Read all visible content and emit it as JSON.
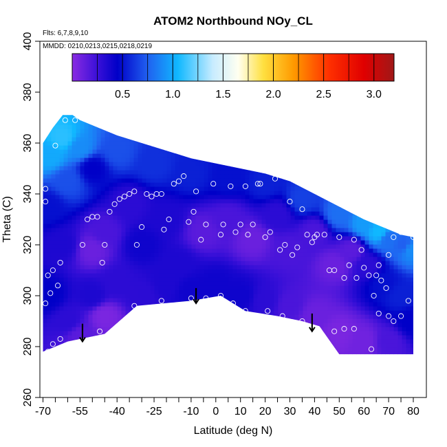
{
  "chart_data": {
    "type": "heatmap",
    "title": "ATOM2 Northbound NOy_CL",
    "subtitle": "Flts: 6,7,8,9,10",
    "annotation": "MMDD: 0210,0213,0215,0218,0219",
    "xlabel": "Latitude (deg N)",
    "ylabel": "Theta (C)",
    "xlim": [
      -70,
      80
    ],
    "ylim": [
      260,
      400
    ],
    "x_ticks": [
      -70,
      -55,
      -40,
      -25,
      -10,
      0,
      10,
      20,
      30,
      40,
      50,
      60,
      70,
      80
    ],
    "x_minor_ticks": [
      -65,
      -60,
      -50,
      -45,
      -35,
      -30,
      -20,
      -15,
      -5,
      5,
      15,
      25,
      35,
      45,
      55,
      65,
      75
    ],
    "y_ticks": [
      260,
      280,
      300,
      320,
      340,
      360,
      380,
      400
    ],
    "grid": false,
    "colorbar": {
      "range": [
        0,
        3.2
      ],
      "ticks": [
        0.5,
        1.0,
        1.5,
        2.0,
        2.5,
        3.0
      ],
      "tick_labels": [
        "0.5",
        "1.0",
        "1.5",
        "2.0",
        "2.5",
        "3.0"
      ],
      "stops": [
        {
          "v": 0.0,
          "c": "#8a2be2"
        },
        {
          "v": 0.25,
          "c": "#3a10d8"
        },
        {
          "v": 0.45,
          "c": "#0000c8"
        },
        {
          "v": 0.75,
          "c": "#2060f0"
        },
        {
          "v": 1.05,
          "c": "#10b8ff"
        },
        {
          "v": 1.4,
          "c": "#c8ecff"
        },
        {
          "v": 1.65,
          "c": "#fffff0"
        },
        {
          "v": 1.9,
          "c": "#ffe040"
        },
        {
          "v": 2.2,
          "c": "#ff9a00"
        },
        {
          "v": 2.55,
          "c": "#ff3000"
        },
        {
          "v": 2.9,
          "c": "#e00000"
        },
        {
          "v": 3.2,
          "c": "#a01818"
        }
      ]
    },
    "field_top": [
      [
        -70,
        360
      ],
      [
        -66,
        366
      ],
      [
        -62,
        371
      ],
      [
        -58,
        371
      ],
      [
        -55,
        369
      ],
      [
        -50,
        367
      ],
      [
        -40,
        363
      ],
      [
        -30,
        360
      ],
      [
        -20,
        357
      ],
      [
        -10,
        354
      ],
      [
        0,
        352
      ],
      [
        10,
        350
      ],
      [
        20,
        348
      ],
      [
        30,
        345
      ],
      [
        40,
        340
      ],
      [
        50,
        335
      ],
      [
        60,
        330
      ],
      [
        70,
        326
      ],
      [
        75,
        324
      ],
      [
        80,
        323
      ]
    ],
    "field_bottom": [
      [
        -70,
        278
      ],
      [
        -65,
        280
      ],
      [
        -60,
        282
      ],
      [
        -45,
        285
      ],
      [
        -32,
        296
      ],
      [
        -10,
        298
      ],
      [
        2,
        300
      ],
      [
        12,
        294
      ],
      [
        25,
        292
      ],
      [
        35,
        290
      ],
      [
        42,
        288
      ],
      [
        50,
        277
      ],
      [
        80,
        277
      ]
    ],
    "field_samples": [
      {
        "x": -67,
        "y": 355,
        "v": 1.0
      },
      {
        "x": -62,
        "y": 362,
        "v": 1.1
      },
      {
        "x": -60,
        "y": 345,
        "v": 0.7
      },
      {
        "x": -55,
        "y": 358,
        "v": 0.9
      },
      {
        "x": -50,
        "y": 350,
        "v": 0.45
      },
      {
        "x": -40,
        "y": 357,
        "v": 0.7
      },
      {
        "x": -25,
        "y": 352,
        "v": 0.6
      },
      {
        "x": -10,
        "y": 348,
        "v": 0.55
      },
      {
        "x": 5,
        "y": 346,
        "v": 0.5
      },
      {
        "x": 20,
        "y": 344,
        "v": 0.55
      },
      {
        "x": 35,
        "y": 338,
        "v": 0.65
      },
      {
        "x": 50,
        "y": 332,
        "v": 0.8
      },
      {
        "x": 60,
        "y": 328,
        "v": 0.95
      },
      {
        "x": 66,
        "y": 325,
        "v": 1.05
      },
      {
        "x": 70,
        "y": 322,
        "v": 0.8
      },
      {
        "x": 76,
        "y": 320,
        "v": 0.75
      },
      {
        "x": 79,
        "y": 318,
        "v": 0.9
      },
      {
        "x": -68,
        "y": 335,
        "v": 0.5
      },
      {
        "x": -62,
        "y": 320,
        "v": 0.35
      },
      {
        "x": -50,
        "y": 318,
        "v": 0.1
      },
      {
        "x": -45,
        "y": 325,
        "v": 0.2
      },
      {
        "x": -35,
        "y": 336,
        "v": 0.3
      },
      {
        "x": -30,
        "y": 320,
        "v": 0.4
      },
      {
        "x": -20,
        "y": 330,
        "v": 0.35
      },
      {
        "x": -15,
        "y": 312,
        "v": 0.35
      },
      {
        "x": -5,
        "y": 325,
        "v": 0.15
      },
      {
        "x": 5,
        "y": 330,
        "v": 0.2
      },
      {
        "x": 15,
        "y": 322,
        "v": 0.1
      },
      {
        "x": 25,
        "y": 332,
        "v": 0.3
      },
      {
        "x": 30,
        "y": 318,
        "v": 0.2
      },
      {
        "x": 40,
        "y": 325,
        "v": 0.2
      },
      {
        "x": 48,
        "y": 312,
        "v": 0.1
      },
      {
        "x": 55,
        "y": 318,
        "v": 0.15
      },
      {
        "x": 62,
        "y": 312,
        "v": 0.3
      },
      {
        "x": 68,
        "y": 305,
        "v": 0.5
      },
      {
        "x": 75,
        "y": 300,
        "v": 0.55
      },
      {
        "x": 79,
        "y": 290,
        "v": 0.45
      },
      {
        "x": -68,
        "y": 300,
        "v": 0.45
      },
      {
        "x": -60,
        "y": 290,
        "v": 0.3
      },
      {
        "x": -50,
        "y": 300,
        "v": 0.35
      },
      {
        "x": -40,
        "y": 305,
        "v": 0.3
      },
      {
        "x": -30,
        "y": 300,
        "v": 0.3
      },
      {
        "x": -20,
        "y": 305,
        "v": 0.35
      },
      {
        "x": -10,
        "y": 302,
        "v": 0.4
      },
      {
        "x": 0,
        "y": 304,
        "v": 0.4
      },
      {
        "x": 10,
        "y": 300,
        "v": 0.4
      },
      {
        "x": 20,
        "y": 298,
        "v": 0.3
      },
      {
        "x": 30,
        "y": 296,
        "v": 0.2
      },
      {
        "x": 40,
        "y": 292,
        "v": 0.1
      },
      {
        "x": 50,
        "y": 285,
        "v": 0.05
      },
      {
        "x": 60,
        "y": 282,
        "v": 0.08
      },
      {
        "x": 70,
        "y": 282,
        "v": 0.2
      },
      {
        "x": -55,
        "y": 284,
        "v": 0.15
      },
      {
        "x": -45,
        "y": 292,
        "v": 0.05
      }
    ],
    "observation_points": [
      [
        -69,
        342
      ],
      [
        -69,
        337
      ],
      [
        -68,
        308
      ],
      [
        -69,
        297
      ],
      [
        -67,
        301
      ],
      [
        -66,
        310
      ],
      [
        -64,
        304
      ],
      [
        -63,
        313
      ],
      [
        -66,
        281
      ],
      [
        -63,
        283
      ],
      [
        -68,
        278
      ],
      [
        -65,
        359
      ],
      [
        -61,
        369
      ],
      [
        -57,
        369
      ],
      [
        -54,
        320
      ],
      [
        -52,
        330
      ],
      [
        -50,
        331
      ],
      [
        -48,
        331
      ],
      [
        -46,
        313
      ],
      [
        -45,
        320
      ],
      [
        -43,
        333
      ],
      [
        -41,
        336
      ],
      [
        -39,
        338
      ],
      [
        -37,
        339
      ],
      [
        -35,
        340
      ],
      [
        -33,
        341
      ],
      [
        -32,
        320
      ],
      [
        -30,
        327
      ],
      [
        -28,
        340
      ],
      [
        -26,
        339
      ],
      [
        -24,
        340
      ],
      [
        -22,
        340
      ],
      [
        -21,
        326
      ],
      [
        -19,
        330
      ],
      [
        -17,
        344
      ],
      [
        -15,
        345
      ],
      [
        -13,
        347
      ],
      [
        -11,
        329
      ],
      [
        -9,
        333
      ],
      [
        -8,
        341
      ],
      [
        -6,
        322
      ],
      [
        -4,
        328
      ],
      [
        -1,
        344
      ],
      [
        2,
        324
      ],
      [
        3,
        328
      ],
      [
        6,
        343
      ],
      [
        8,
        325
      ],
      [
        10,
        328
      ],
      [
        12,
        343
      ],
      [
        13,
        324
      ],
      [
        15,
        328
      ],
      [
        17,
        344
      ],
      [
        18,
        344
      ],
      [
        20,
        323
      ],
      [
        22,
        325
      ],
      [
        24,
        346
      ],
      [
        26,
        318
      ],
      [
        28,
        320
      ],
      [
        30,
        337
      ],
      [
        31,
        316
      ],
      [
        33,
        319
      ],
      [
        35,
        334
      ],
      [
        37,
        324
      ],
      [
        39,
        321
      ],
      [
        40,
        323
      ],
      [
        41,
        324
      ],
      [
        44,
        324
      ],
      [
        46,
        310
      ],
      [
        48,
        310
      ],
      [
        50,
        323
      ],
      [
        52,
        307
      ],
      [
        54,
        312
      ],
      [
        56,
        322
      ],
      [
        57,
        307
      ],
      [
        59,
        318
      ],
      [
        60,
        311
      ],
      [
        62,
        308
      ],
      [
        64,
        300
      ],
      [
        65,
        308
      ],
      [
        66,
        312
      ],
      [
        67,
        306
      ],
      [
        69,
        303
      ],
      [
        70,
        316
      ],
      [
        72,
        323
      ],
      [
        75,
        325
      ],
      [
        78,
        298
      ],
      [
        80,
        323
      ],
      [
        -47,
        286
      ],
      [
        -33,
        296
      ],
      [
        -22,
        298
      ],
      [
        -10,
        299
      ],
      [
        -4,
        299
      ],
      [
        2,
        300
      ],
      [
        7,
        297
      ],
      [
        12,
        294
      ],
      [
        21,
        294
      ],
      [
        27,
        292
      ],
      [
        35,
        290
      ],
      [
        48,
        286
      ],
      [
        52,
        287
      ],
      [
        56,
        287
      ],
      [
        63,
        279
      ],
      [
        66,
        293
      ],
      [
        70,
        292
      ],
      [
        72,
        290
      ],
      [
        75,
        292
      ]
    ],
    "arrows": [
      {
        "x": -54,
        "y_start": 289,
        "y_end": 282
      },
      {
        "x": -8,
        "y_start": 303,
        "y_end": 297
      },
      {
        "x": 39,
        "y_start": 293,
        "y_end": 286
      }
    ]
  }
}
